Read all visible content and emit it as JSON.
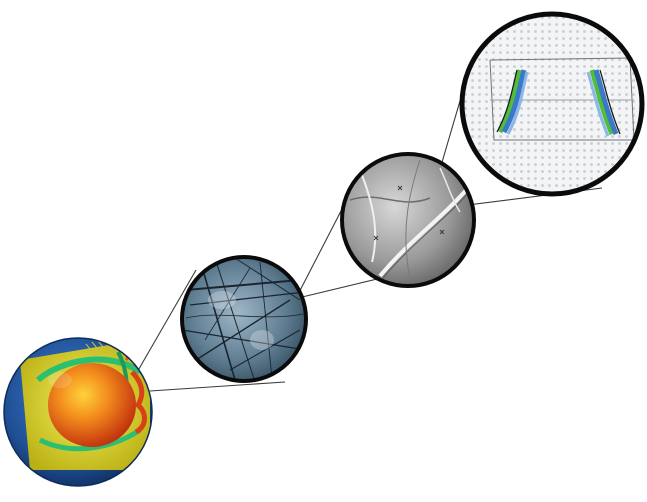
{
  "figure": {
    "stages": [
      {
        "icon": "planet-cutaway-icon"
      },
      {
        "icon": "rock-microstructure-icon"
      },
      {
        "icon": "crystal-grain-surface-icon"
      },
      {
        "icon": "atomic-lattice-simulation-icon"
      }
    ],
    "colors": {
      "background": "#ffffff",
      "connector": "#3a3a3a",
      "circle-border": "#0b0b0b",
      "planet-ocean": "#1f4f94",
      "planet-core": "#e8561d",
      "planet-mantle": "#e6d21a",
      "planet-plume": "#2bbf72",
      "lattice-blue": "#3b78c8",
      "lattice-green": "#4fbf3a"
    }
  }
}
